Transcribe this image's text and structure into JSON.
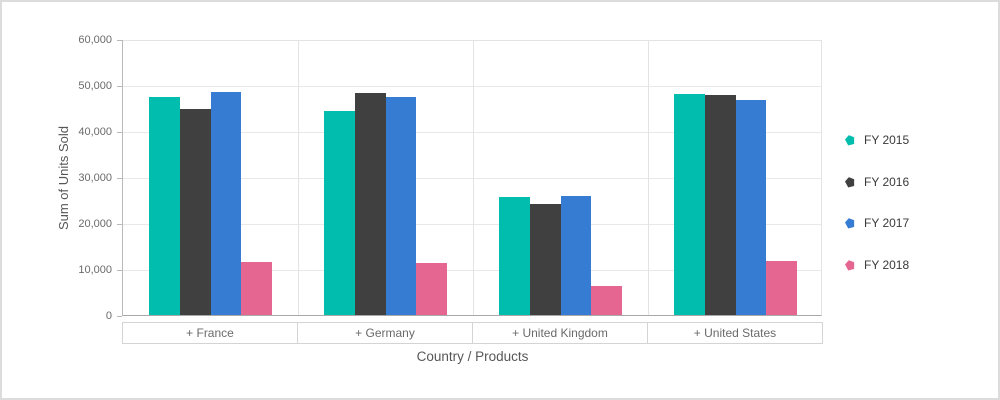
{
  "chart_data": {
    "type": "bar",
    "title": "",
    "xlabel": "Country / Products",
    "ylabel": "Sum of Units Sold",
    "categories": [
      "+ France",
      "+ Germany",
      "+ United Kingdom",
      "+ United States"
    ],
    "series": [
      {
        "name": "FY 2015",
        "color": "#00bdae",
        "values": [
          47300,
          44400,
          25600,
          48000
        ]
      },
      {
        "name": "FY 2016",
        "color": "#404041",
        "values": [
          44700,
          48200,
          24100,
          47900
        ]
      },
      {
        "name": "FY 2017",
        "color": "#357cd2",
        "values": [
          48500,
          47400,
          25900,
          46800
        ]
      },
      {
        "name": "FY 2018",
        "color": "#e56691",
        "values": [
          11500,
          11400,
          6300,
          11700
        ]
      }
    ],
    "ylim": [
      0,
      60000
    ],
    "y_tick_step": 10000,
    "y_tick_labels": [
      "0",
      "10,000",
      "20,000",
      "30,000",
      "40,000",
      "50,000",
      "60,000"
    ],
    "grid": true,
    "legend_position": "right",
    "colors": {
      "axis_line": "#a9a9a9",
      "grid_line": "#e8e8e8",
      "frame_border": "#dcdcdc"
    }
  }
}
